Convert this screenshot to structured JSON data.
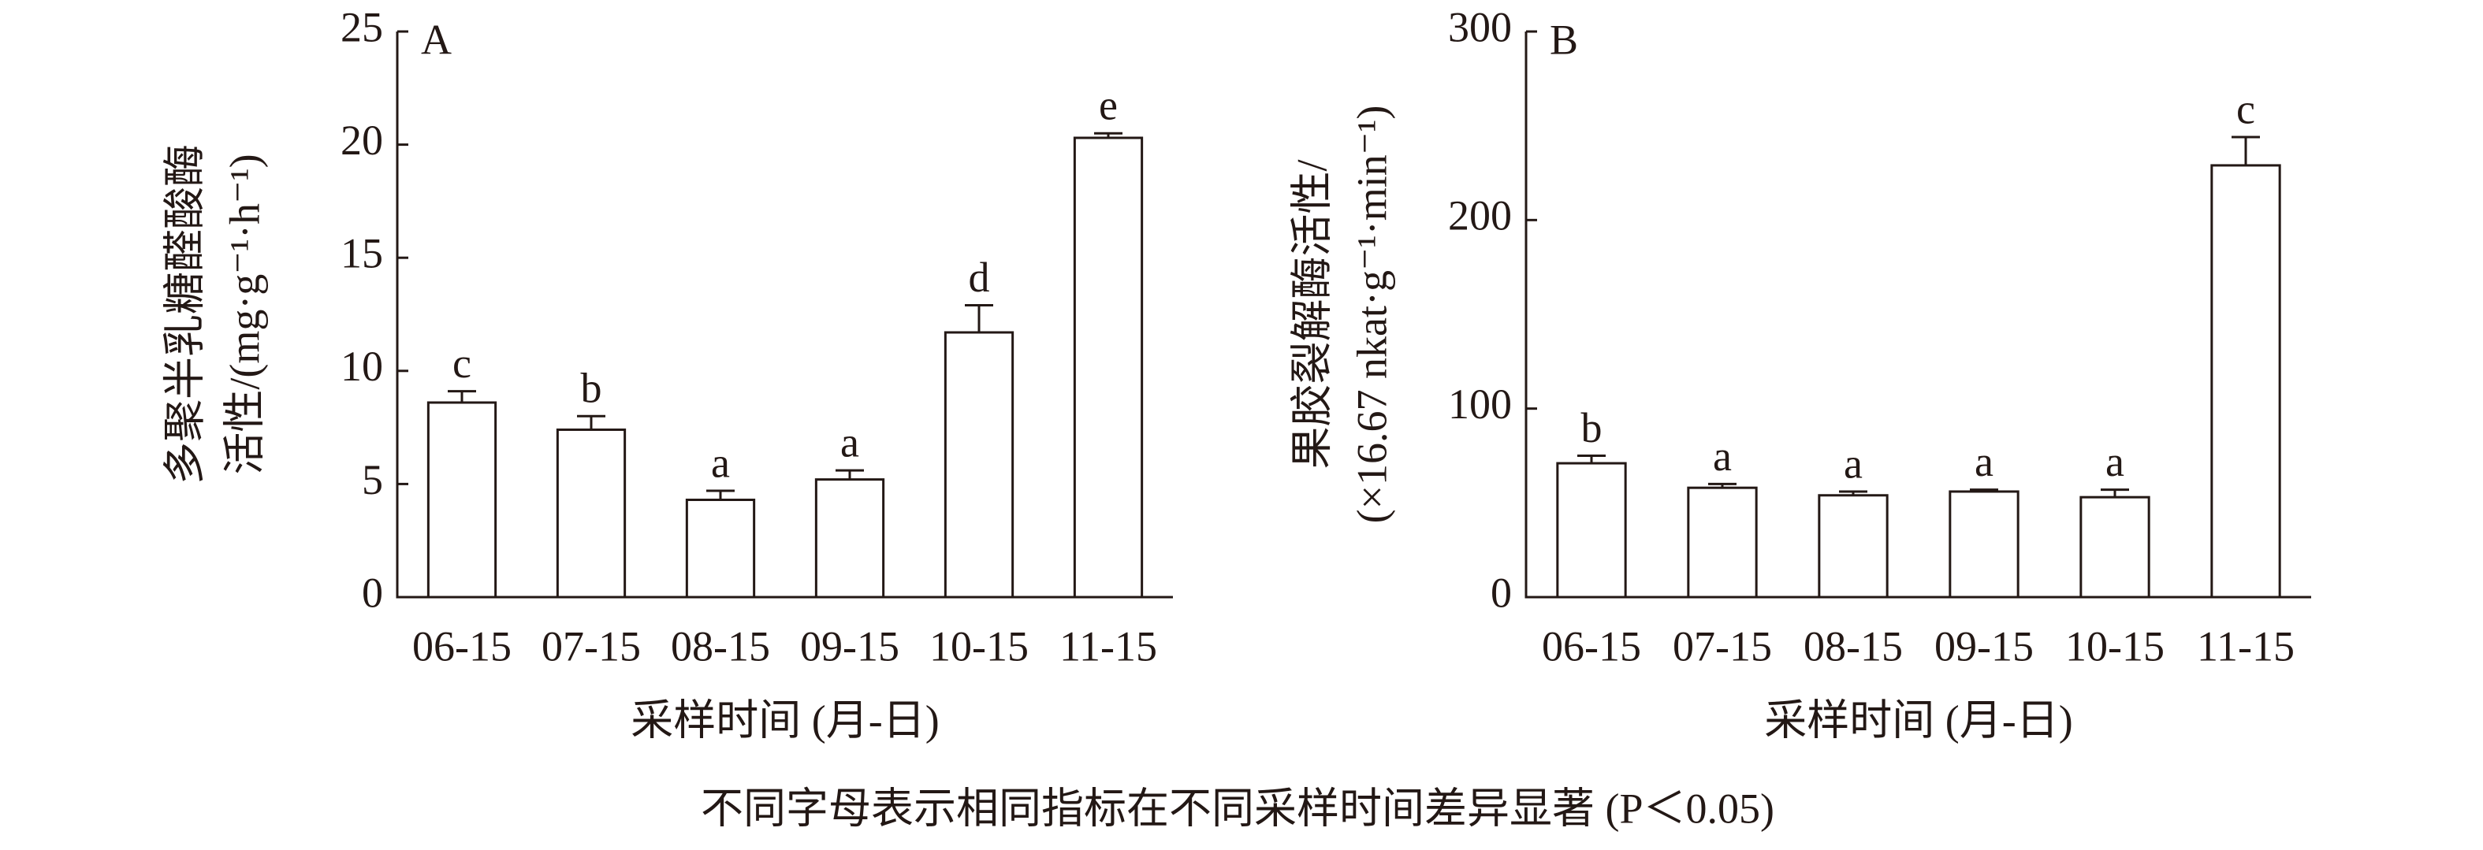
{
  "chart_data": [
    {
      "type": "bar",
      "panel_label": "A",
      "ylabel": [
        "多聚半乳糖醛酸酶",
        "活性/(mg·g⁻¹·h⁻¹)"
      ],
      "xlabel": "采样时间 (月-日)",
      "categories": [
        "06-15",
        "07-15",
        "08-15",
        "09-15",
        "10-15",
        "11-15"
      ],
      "values": [
        8.6,
        7.4,
        4.3,
        5.2,
        11.7,
        20.3
      ],
      "errors": [
        0.5,
        0.6,
        0.4,
        0.4,
        1.2,
        0.2
      ],
      "letters": [
        "c",
        "b",
        "a",
        "a",
        "d",
        "e"
      ],
      "color": "#ffffff",
      "ylim": [
        0,
        25
      ],
      "yticks": [
        0,
        5,
        10,
        15,
        20,
        25
      ]
    },
    {
      "type": "bar",
      "panel_label": "B",
      "ylabel": [
        "果胶裂解酶活性/",
        "(×16.67 nkat·g⁻¹·min⁻¹)"
      ],
      "xlabel": "采样时间 (月-日)",
      "categories": [
        "06-15",
        "07-15",
        "08-15",
        "09-15",
        "10-15",
        "11-15"
      ],
      "values": [
        71,
        58,
        54,
        56,
        53,
        229
      ],
      "errors": [
        4,
        2,
        2,
        1,
        4,
        15
      ],
      "letters": [
        "b",
        "a",
        "a",
        "a",
        "a",
        "c"
      ],
      "color": "#ffffff",
      "ylim": [
        0,
        300
      ],
      "yticks": [
        0,
        100,
        200,
        300
      ]
    }
  ],
  "note": "不同字母表示相同指标在不同采样时间差异显著 (P＜0.05)"
}
